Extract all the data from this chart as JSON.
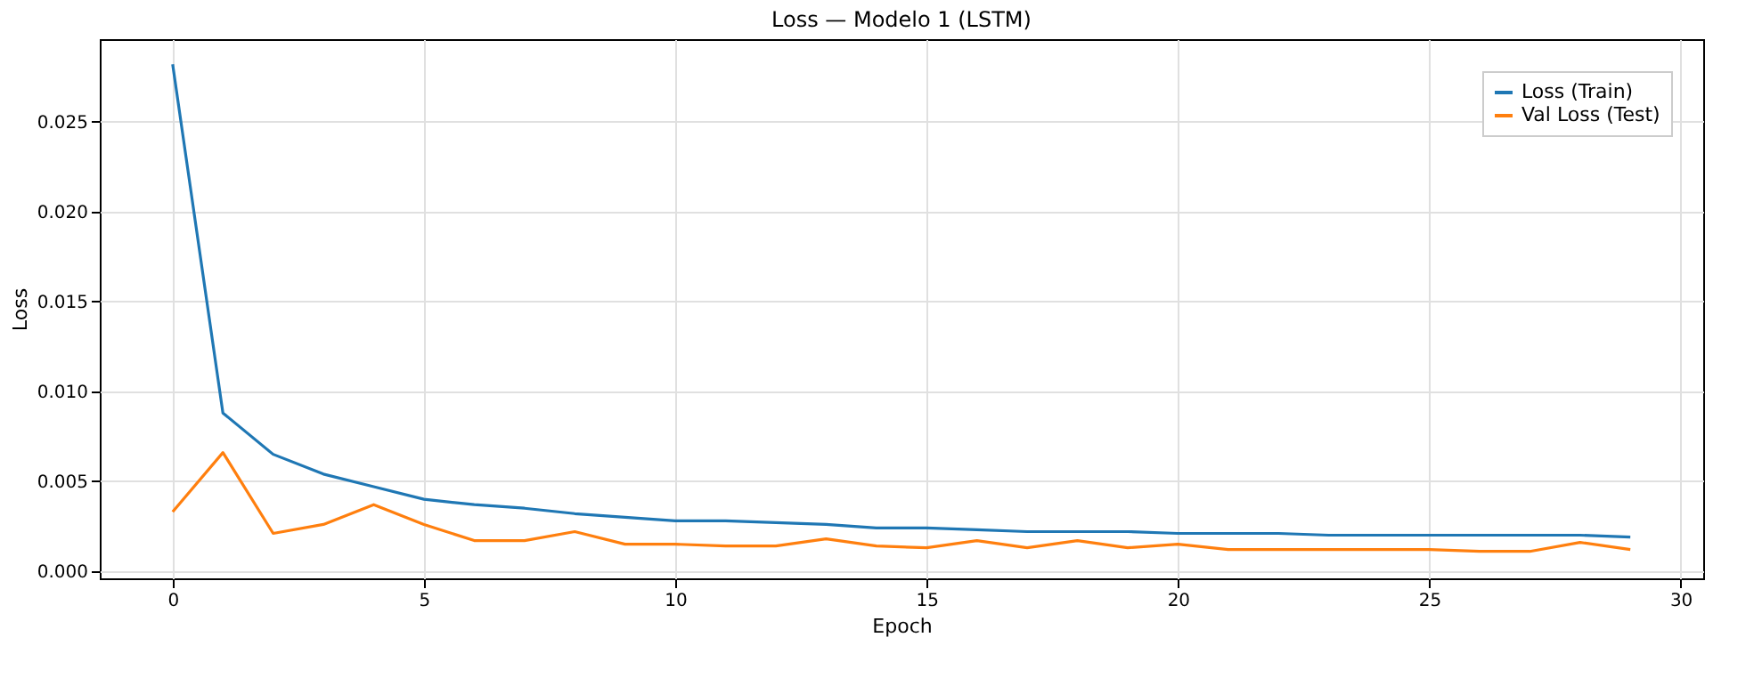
{
  "chart_data": {
    "type": "line",
    "title": "Loss — Modelo 1 (LSTM)",
    "xlabel": "Epoch",
    "ylabel": "Loss",
    "x": [
      0,
      1,
      2,
      3,
      4,
      5,
      6,
      7,
      8,
      9,
      10,
      11,
      12,
      13,
      14,
      15,
      16,
      17,
      18,
      19,
      20,
      21,
      22,
      23,
      24,
      25,
      26,
      27,
      28,
      29
    ],
    "series": [
      {
        "name": "Loss (Train)",
        "color": "#1f77b4",
        "values": [
          0.0282,
          0.0088,
          0.0065,
          0.0054,
          0.0047,
          0.004,
          0.0037,
          0.0035,
          0.0032,
          0.003,
          0.0028,
          0.0028,
          0.0027,
          0.0026,
          0.0024,
          0.0024,
          0.0023,
          0.0022,
          0.0022,
          0.0022,
          0.0021,
          0.0021,
          0.0021,
          0.002,
          0.002,
          0.002,
          0.002,
          0.002,
          0.002,
          0.0019
        ]
      },
      {
        "name": "Val Loss (Test)",
        "color": "#ff7f0e",
        "values": [
          0.0033,
          0.0066,
          0.0021,
          0.0026,
          0.0037,
          0.0026,
          0.0017,
          0.0017,
          0.0022,
          0.0015,
          0.0015,
          0.0014,
          0.0014,
          0.0018,
          0.0014,
          0.0013,
          0.0017,
          0.0013,
          0.0017,
          0.0013,
          0.0015,
          0.0012,
          0.0012,
          0.0012,
          0.0012,
          0.0012,
          0.0011,
          0.0011,
          0.0016,
          0.0012
        ]
      }
    ],
    "xlim": [
      -1.45,
      30.45
    ],
    "xticks": [
      0,
      5,
      10,
      15,
      20,
      25,
      30
    ],
    "ylim": [
      -0.0004,
      0.0296
    ],
    "yticks": [
      {
        "value": 0,
        "label": "0.000"
      },
      {
        "value": 0.005,
        "label": "0.005"
      },
      {
        "value": 0.01,
        "label": "0.010"
      },
      {
        "value": 0.015,
        "label": "0.015"
      },
      {
        "value": 0.02,
        "label": "0.020"
      },
      {
        "value": 0.025,
        "label": "0.025"
      }
    ],
    "grid": true,
    "legend": "top right",
    "marker": "none",
    "line_style": "solid"
  }
}
